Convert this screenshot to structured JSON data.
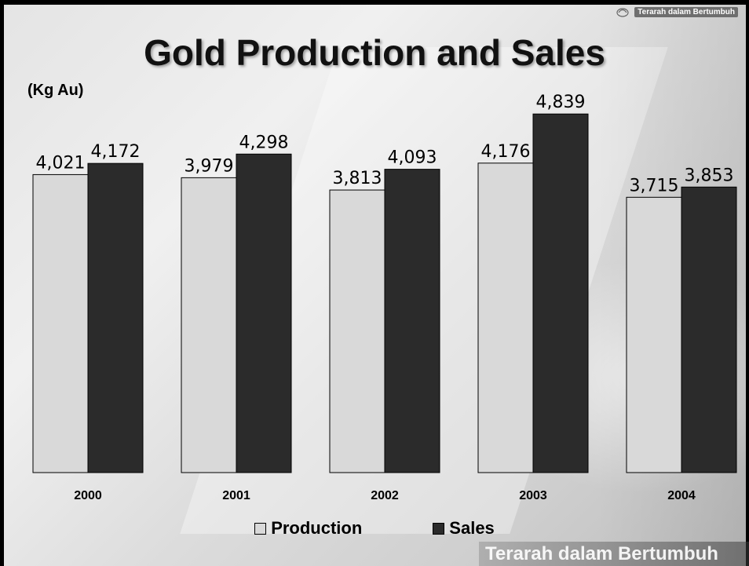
{
  "slide": {
    "tagline_top": "Terarah dalam Bertumbuh",
    "tagline_bottom": "Terarah dalam Bertumbuh"
  },
  "chart_data": {
    "type": "bar",
    "title": "Gold Production and Sales",
    "ylabel": "(Kg Au)",
    "categories": [
      "2000",
      "2001",
      "2002",
      "2003",
      "2004"
    ],
    "series": [
      {
        "name": "Production",
        "values": [
          4021,
          3979,
          3813,
          4176,
          3715
        ],
        "labels": [
          "4,021",
          "3,979",
          "3,813",
          "4,176",
          "3,715"
        ],
        "color": "#d9d9d9"
      },
      {
        "name": "Sales",
        "values": [
          4172,
          4298,
          4093,
          4839,
          3853
        ],
        "labels": [
          "4,172",
          "4,298",
          "4,093",
          "4,839",
          "3,853"
        ],
        "color": "#2b2b2b"
      }
    ],
    "ylim": [
      0,
      5000
    ],
    "grid": false,
    "legend": "bottom-center"
  }
}
